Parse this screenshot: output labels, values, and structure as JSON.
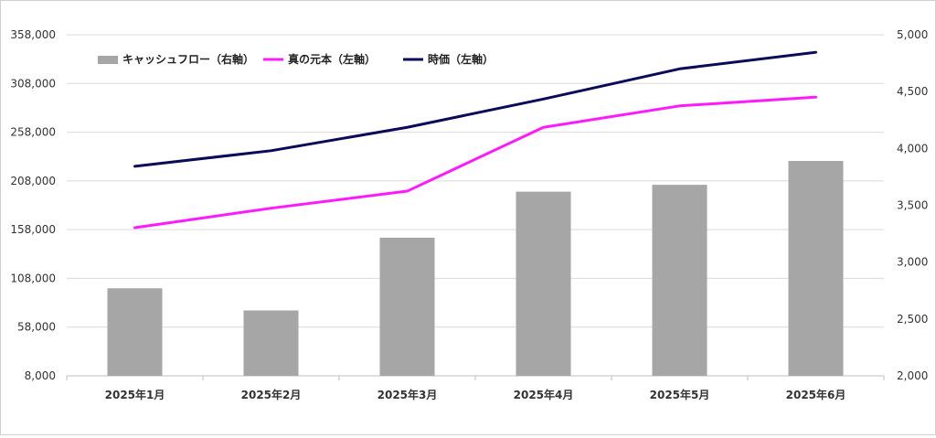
{
  "chart_data": {
    "type": "bar+line",
    "categories": [
      "2025年1月",
      "2025年2月",
      "2025年3月",
      "2025年4月",
      "2025年5月",
      "2025年6月"
    ],
    "y_left": {
      "min": 8000,
      "max": 358000,
      "ticks": [
        "8,000",
        "58,000",
        "108,000",
        "158,000",
        "208,000",
        "258,000",
        "308,000",
        "358,000"
      ],
      "tick_values": [
        8000,
        58000,
        108000,
        158000,
        208000,
        258000,
        308000,
        358000
      ]
    },
    "y_right": {
      "min": 2000,
      "max": 5000,
      "ticks": [
        "2,000",
        "2,500",
        "3,000",
        "3,500",
        "4,000",
        "4,500",
        "5,000"
      ],
      "tick_values": [
        2000,
        2500,
        3000,
        3500,
        4000,
        4500,
        5000
      ]
    },
    "series": [
      {
        "name": "キャッシュフロー（右軸）",
        "type": "bar",
        "axis": "right",
        "color": "#a6a6a6",
        "values": [
          2770,
          2575,
          3215,
          3620,
          3680,
          3890
        ]
      },
      {
        "name": "真の元本（左軸）",
        "type": "line",
        "axis": "left",
        "color": "#ff19ff",
        "values": [
          160000,
          180000,
          197500,
          263000,
          285000,
          294000
        ]
      },
      {
        "name": "時価（左軸）",
        "type": "line",
        "axis": "left",
        "color": "#0a0a5a",
        "values": [
          223000,
          239000,
          263000,
          292000,
          323000,
          340000
        ]
      }
    ],
    "grid": true,
    "legend_position": "top-left"
  }
}
